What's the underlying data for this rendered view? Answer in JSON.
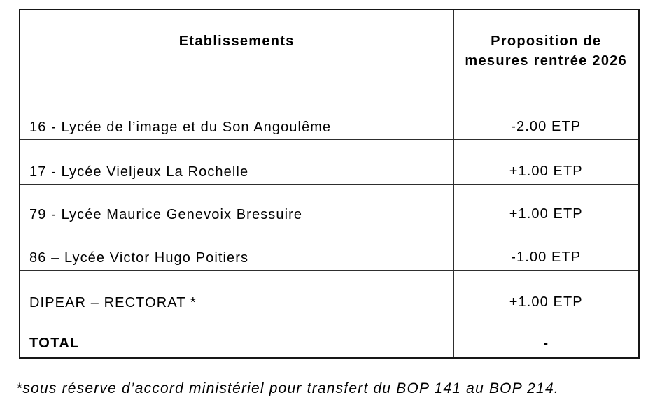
{
  "table": {
    "columns": [
      {
        "label": "Etablissements"
      },
      {
        "label": "Proposition de mesures rentrée 2026"
      }
    ],
    "rows": [
      {
        "etablissement": "16 - Lycée de l’image et du Son Angoulême",
        "mesure": "-2.00 ETP"
      },
      {
        "etablissement": "17 - Lycée Vieljeux La Rochelle",
        "mesure": "+1.00 ETP"
      },
      {
        "etablissement": "79 - Lycée Maurice Genevoix  Bressuire",
        "mesure": "+1.00 ETP"
      },
      {
        "etablissement": "86 – Lycée Victor Hugo Poitiers",
        "mesure": "-1.00 ETP"
      },
      {
        "etablissement": "DIPEAR – RECTORAT *",
        "mesure": "+1.00 ETP"
      }
    ],
    "total": {
      "label": "TOTAL",
      "value": "-"
    }
  },
  "footnote": "*sous réserve d’accord ministériel pour transfert du BOP 141 au BOP 214.",
  "colors": {
    "text": "#000000",
    "border": "#2e2e2e",
    "background": "#ffffff"
  }
}
